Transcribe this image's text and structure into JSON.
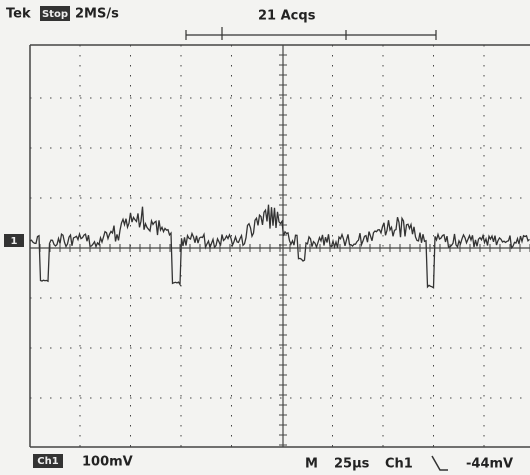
{
  "header": {
    "brand": "Tek",
    "mode": "Stop",
    "sample_rate": "2MS/s",
    "acquisitions": "21 Acqs"
  },
  "channel_marker": "1",
  "footer": {
    "channel": "Ch1",
    "scale": "100mV",
    "timebase_label": "M",
    "timebase": "25µs",
    "trigger_source": "Ch1",
    "trigger_level": "-44mV"
  }
}
